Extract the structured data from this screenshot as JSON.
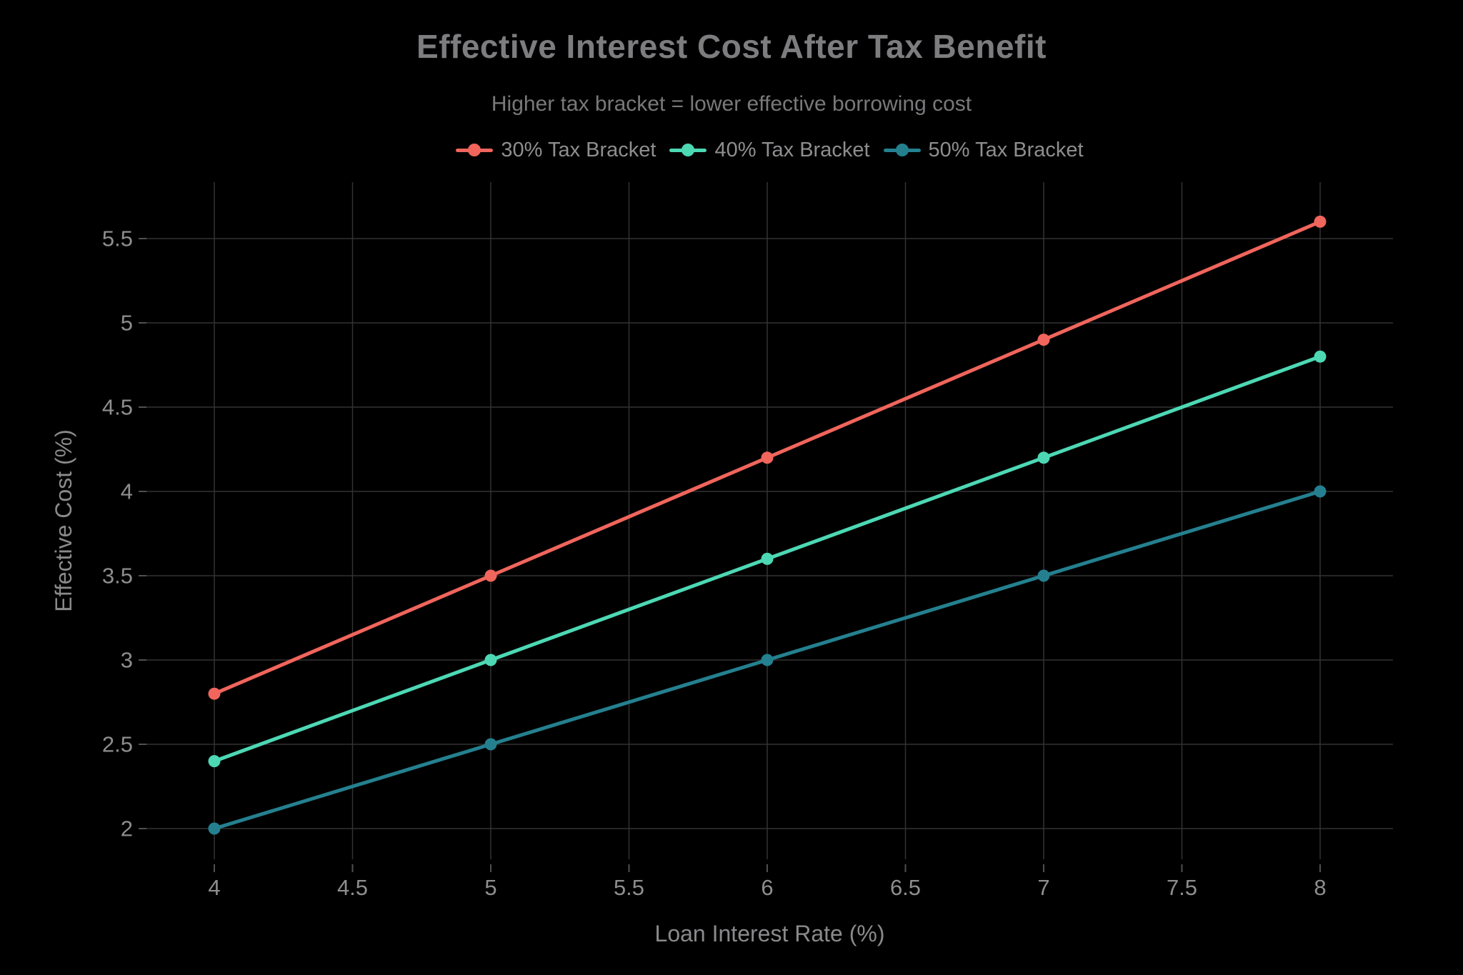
{
  "title": "Effective Interest Cost After Tax Benefit",
  "subtitle": "Higher tax bracket = lower effective borrowing cost",
  "colors": {
    "background": "#000000",
    "grid": "#323232",
    "tick": "#505050",
    "series_30": "#f0655c",
    "series_40": "#4dd8b4",
    "series_50": "#24808f"
  },
  "chart_data": {
    "type": "line",
    "title": "Effective Interest Cost After Tax Benefit",
    "subtitle": "Higher tax bracket = lower effective borrowing cost",
    "xlabel": "Loan Interest Rate (%)",
    "ylabel": "Effective Cost (%)",
    "x": [
      4,
      5,
      6,
      7,
      8
    ],
    "series": [
      {
        "name": "30% Tax Bracket",
        "color": "#f0655c",
        "values": [
          2.8,
          3.5,
          4.2,
          4.9,
          5.6
        ]
      },
      {
        "name": "40% Tax Bracket",
        "color": "#4dd8b4",
        "values": [
          2.4,
          3.0,
          3.6,
          4.2,
          4.8
        ]
      },
      {
        "name": "50% Tax Bracket",
        "color": "#24808f",
        "values": [
          2.0,
          2.5,
          3.0,
          3.5,
          4.0
        ]
      }
    ],
    "x_ticks": [
      4,
      4.5,
      5,
      5.5,
      6,
      6.5,
      7,
      7.5,
      8
    ],
    "x_tick_labels": [
      "4",
      "4.5",
      "5",
      "5.5",
      "6",
      "6.5",
      "7",
      "7.5",
      "8"
    ],
    "y_ticks": [
      2,
      2.5,
      3,
      3.5,
      4,
      4.5,
      5,
      5.5
    ],
    "y_tick_labels": [
      "2",
      "2.5",
      "3",
      "3.5",
      "4",
      "4.5",
      "5",
      "5.5"
    ],
    "xlim": [
      3.75,
      8.26
    ],
    "ylim": [
      1.8,
      5.83
    ],
    "grid": true,
    "legend_position": "top"
  }
}
